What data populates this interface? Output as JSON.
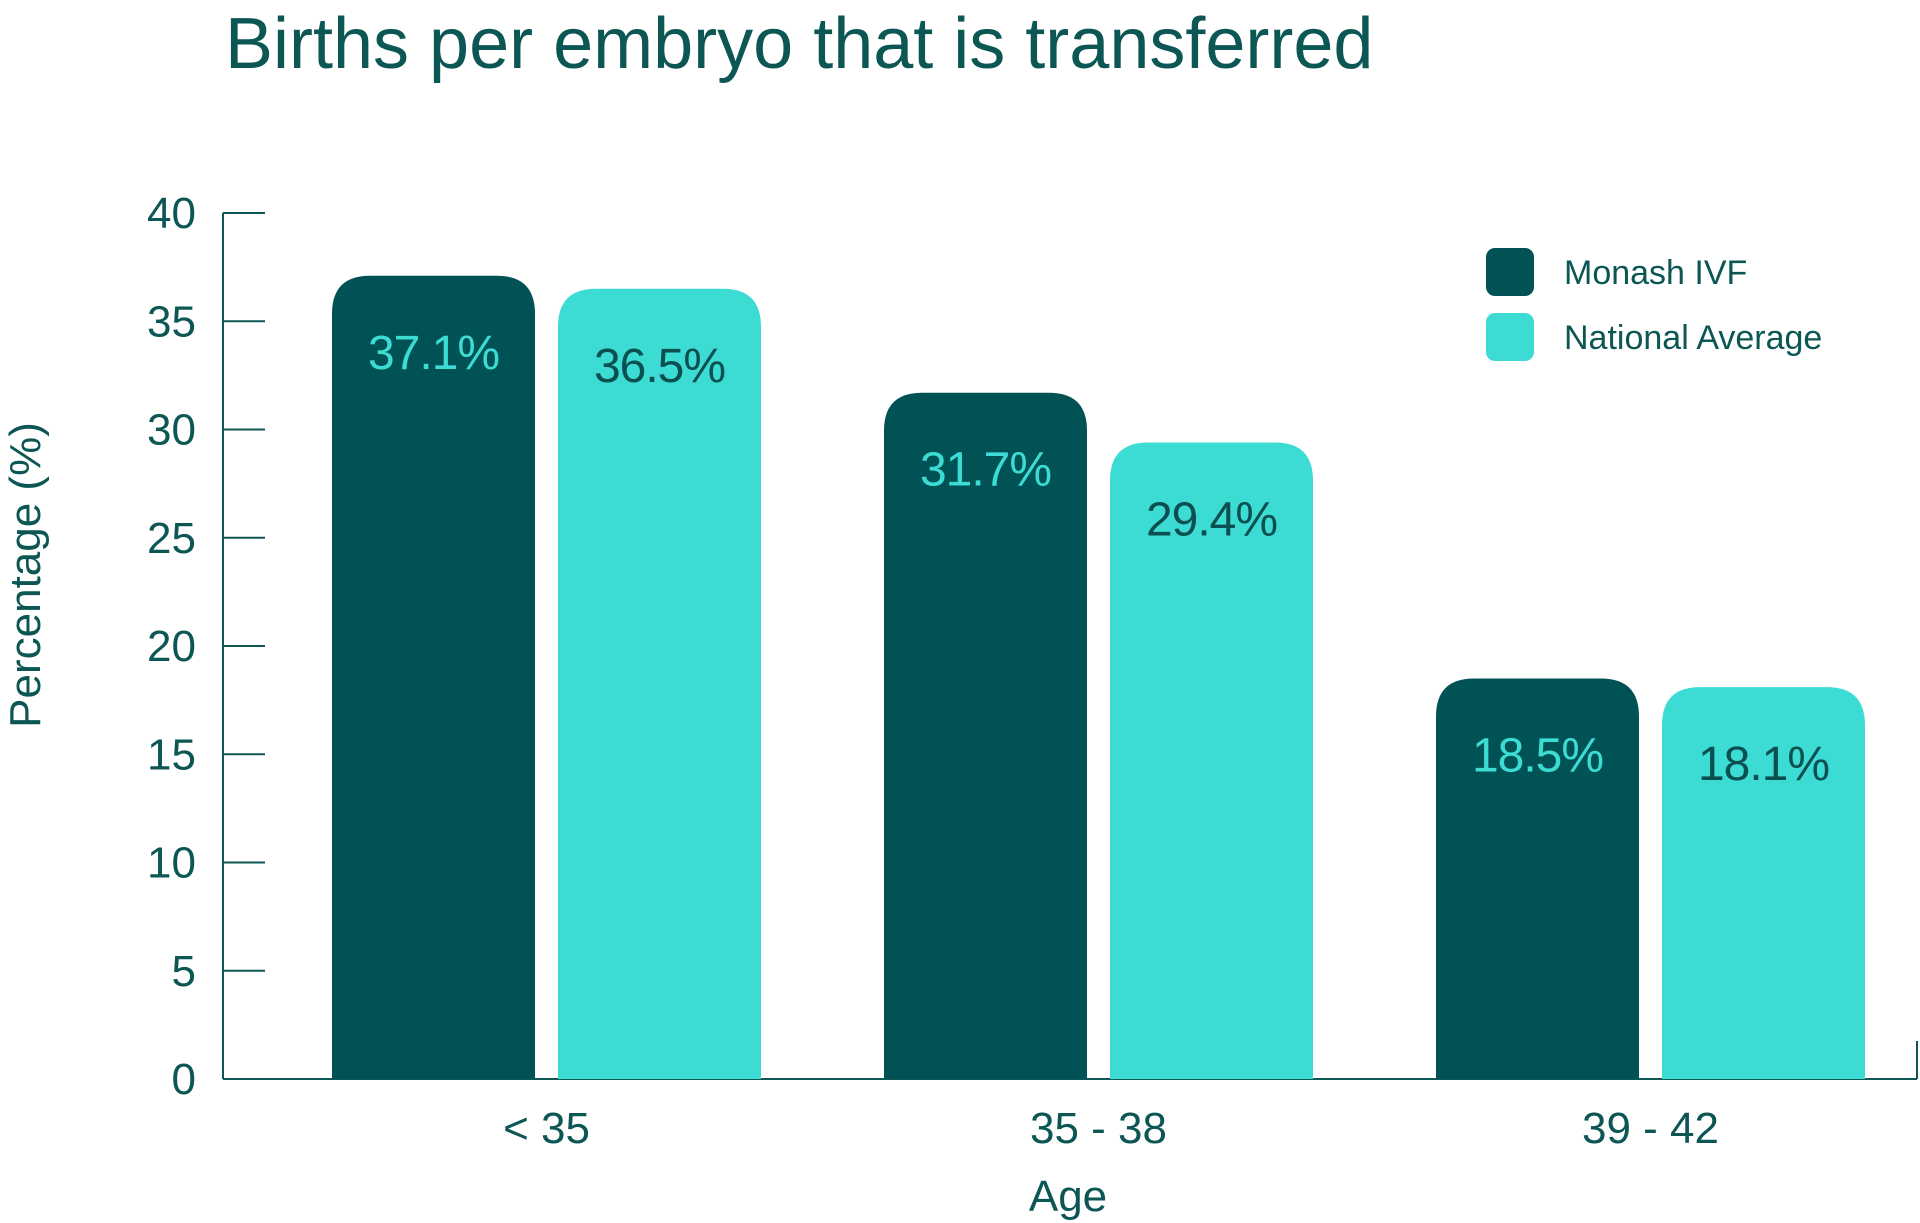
{
  "chart_data": {
    "type": "bar",
    "title": "Births per embryo that is transferred",
    "xlabel": "Age",
    "ylabel": "Percentage (%)",
    "ylim": [
      0,
      40
    ],
    "yticks": [
      0,
      5,
      10,
      15,
      20,
      25,
      30,
      35,
      40
    ],
    "categories": [
      "< 35",
      "35 - 38",
      "39 - 42"
    ],
    "series": [
      {
        "name": "Monash IVF",
        "color": "#005255",
        "label_color": "#3cdcd4",
        "values": [
          37.1,
          31.7,
          18.5
        ],
        "labels": [
          "37.1%",
          "31.7%",
          "18.5%"
        ]
      },
      {
        "name": "National Average",
        "color": "#3cdcd4",
        "label_color": "#0c4f50",
        "values": [
          36.5,
          29.4,
          18.1
        ],
        "labels": [
          "36.5%",
          "29.4%",
          "18.1%"
        ]
      }
    ],
    "legend_position": "top-right",
    "grid": false
  }
}
